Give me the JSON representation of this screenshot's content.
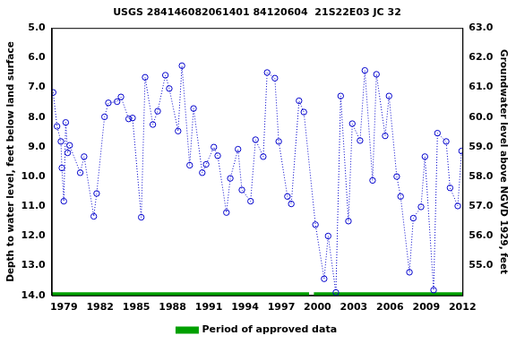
{
  "chart_data": {
    "type": "scatter",
    "title": "USGS 284146082061401 84120604  21S22E03 JC 32",
    "y_label": "Depth to water level, feet below land surface",
    "y2_label": "Groundwater level above NGVD 1929, feet",
    "x": [
      1978.12,
      1978.44,
      1978.76,
      1978.84,
      1979.0,
      1979.16,
      1979.32,
      1979.48,
      1980.36,
      1980.68,
      1981.48,
      1981.72,
      1982.37,
      1982.69,
      1983.41,
      1983.73,
      1984.37,
      1984.69,
      1985.41,
      1985.73,
      1986.37,
      1986.77,
      1987.41,
      1987.73,
      1988.46,
      1988.78,
      1989.42,
      1989.74,
      1990.46,
      1990.78,
      1991.42,
      1991.74,
      1992.46,
      1992.78,
      1993.42,
      1993.74,
      1994.46,
      1994.87,
      1995.51,
      1995.83,
      1996.47,
      1996.79,
      1997.51,
      1997.83,
      1998.47,
      1998.87,
      1999.83,
      2000.55,
      2000.88,
      2001.52,
      2001.92,
      2002.56,
      2002.88,
      2003.52,
      2003.92,
      2004.56,
      2004.88,
      2005.6,
      2005.92,
      2006.56,
      2006.88,
      2007.61,
      2007.93,
      2008.57,
      2008.89,
      2009.61,
      2009.93,
      2010.65,
      2010.97,
      2011.61,
      2011.93
    ],
    "series": [
      {
        "color": "#0000cc",
        "marker": "circle",
        "line_style": "dotted",
        "values": [
          7.17,
          8.31,
          8.82,
          9.71,
          10.83,
          8.18,
          9.2,
          8.95,
          9.87,
          9.33,
          11.34,
          10.57,
          7.99,
          7.52,
          7.48,
          7.32,
          8.06,
          8.03,
          11.37,
          6.66,
          8.25,
          7.8,
          6.59,
          7.04,
          8.47,
          6.27,
          9.62,
          7.71,
          9.87,
          9.59,
          9.01,
          9.3,
          11.21,
          10.06,
          9.08,
          10.45,
          10.83,
          8.76,
          9.33,
          6.5,
          6.69,
          8.82,
          10.67,
          10.92,
          7.45,
          7.83,
          11.62,
          13.44,
          12.0,
          13.9,
          7.29,
          11.5,
          8.22,
          8.79,
          6.43,
          10.13,
          6.56,
          8.63,
          7.29,
          10.0,
          10.67,
          13.22,
          11.4,
          11.02,
          9.33,
          13.82,
          8.54,
          8.82,
          10.38,
          10.99,
          9.14
        ]
      },
      {
        "name": "Period of approved data",
        "color": "#00a000",
        "marker": "none",
        "line_style": "solid",
        "x": [
          1978,
          1999.3,
          1999.5,
          1999.7,
          2012
        ],
        "values": [
          13.95,
          13.95,
          null,
          13.95,
          13.95
        ]
      }
    ],
    "xlim": [
      1978,
      2012
    ],
    "xticks": [
      1979,
      1982,
      1985,
      1988,
      1991,
      1994,
      1997,
      2000,
      2003,
      2006,
      2009,
      2012
    ],
    "ylim": [
      14,
      5
    ],
    "yticks": [
      {
        "value": 5,
        "label": "5.0"
      },
      {
        "value": 6,
        "label": "6.0"
      },
      {
        "value": 7,
        "label": "7.0"
      },
      {
        "value": 8,
        "label": "8.0"
      },
      {
        "value": 9,
        "label": "9.0"
      },
      {
        "value": 10,
        "label": "10.0"
      },
      {
        "value": 11,
        "label": "11.0"
      },
      {
        "value": 12,
        "label": "12.0"
      },
      {
        "value": 13,
        "label": "13.0"
      },
      {
        "value": 14,
        "label": "14.0"
      }
    ],
    "y2lim": [
      54,
      63
    ],
    "y2ticks": [
      {
        "value": 55,
        "label": "55.0"
      },
      {
        "value": 56,
        "label": "56.0"
      },
      {
        "value": 57,
        "label": "57.0"
      },
      {
        "value": 58,
        "label": "58.0"
      },
      {
        "value": 59,
        "label": "59.0"
      },
      {
        "value": 60,
        "label": "60.0"
      },
      {
        "value": 61,
        "label": "61.0"
      },
      {
        "value": 62,
        "label": "62.0"
      },
      {
        "value": 63,
        "label": "63.0"
      }
    ],
    "grid": false,
    "legend": "bottom"
  }
}
